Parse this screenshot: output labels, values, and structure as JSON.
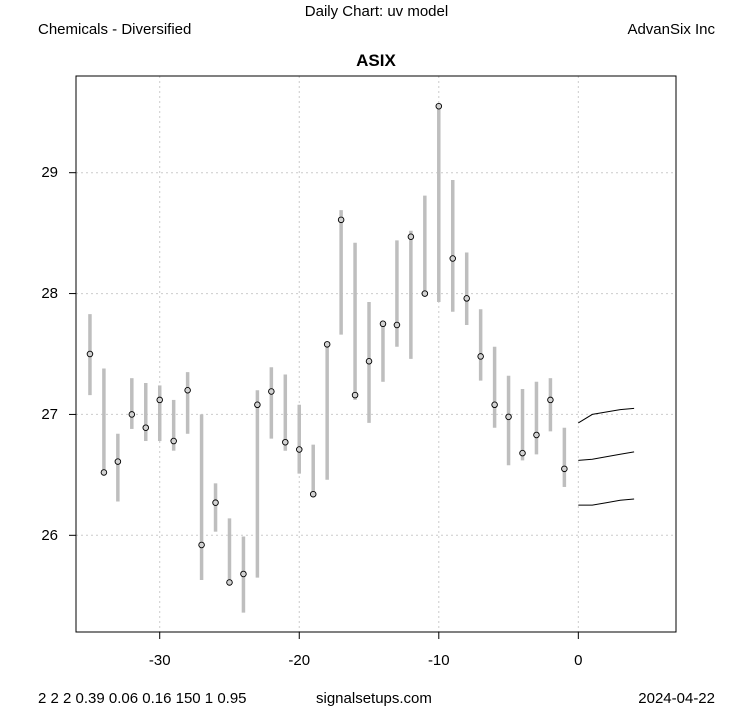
{
  "header": {
    "top_title": "Daily Chart: uv model",
    "left_label": "Chemicals - Diversified",
    "right_label": "AdvanSix Inc"
  },
  "footer": {
    "params": "2 2 2 0.39 0.06 0.16 150 1 0.95",
    "site": "signalsetups.com",
    "date": "2024-04-22"
  },
  "chart_data": {
    "type": "scatter",
    "title": "ASIX",
    "xlabel": "",
    "ylabel": "",
    "xlim": [
      -36,
      7
    ],
    "ylim": [
      25.2,
      29.8
    ],
    "x_ticks": [
      -30,
      -20,
      -10,
      0
    ],
    "y_ticks": [
      26,
      27,
      28,
      29
    ],
    "grid": true,
    "colors": {
      "range_bar": "#bebebe",
      "point_fill": "#d3d3d3",
      "point_stroke": "#000000",
      "forecast_line": "#000000",
      "grid": "#cccccc"
    },
    "points": [
      {
        "x": -35,
        "close": 27.5,
        "low": 27.16,
        "high": 27.83
      },
      {
        "x": -34,
        "close": 26.52,
        "low": 26.52,
        "high": 27.38
      },
      {
        "x": -33,
        "close": 26.61,
        "low": 26.28,
        "high": 26.84
      },
      {
        "x": -32,
        "close": 27.0,
        "low": 26.88,
        "high": 27.3
      },
      {
        "x": -31,
        "close": 26.89,
        "low": 26.78,
        "high": 27.26
      },
      {
        "x": -30,
        "close": 27.12,
        "low": 26.78,
        "high": 27.24
      },
      {
        "x": -29,
        "close": 26.78,
        "low": 26.7,
        "high": 27.12
      },
      {
        "x": -28,
        "close": 27.2,
        "low": 26.84,
        "high": 27.35
      },
      {
        "x": -27,
        "close": 25.92,
        "low": 25.63,
        "high": 27.0
      },
      {
        "x": -26,
        "close": 26.27,
        "low": 26.03,
        "high": 26.43
      },
      {
        "x": -25,
        "close": 25.61,
        "low": 25.61,
        "high": 26.14
      },
      {
        "x": -24,
        "close": 25.68,
        "low": 25.36,
        "high": 25.99
      },
      {
        "x": -23,
        "close": 27.08,
        "low": 25.65,
        "high": 27.2
      },
      {
        "x": -22,
        "close": 27.19,
        "low": 26.8,
        "high": 27.39
      },
      {
        "x": -21,
        "close": 26.77,
        "low": 26.7,
        "high": 27.33
      },
      {
        "x": -20,
        "close": 26.71,
        "low": 26.51,
        "high": 27.08
      },
      {
        "x": -19,
        "close": 26.34,
        "low": 26.34,
        "high": 26.75
      },
      {
        "x": -18,
        "close": 27.58,
        "low": 26.46,
        "high": 27.58
      },
      {
        "x": -17,
        "close": 28.61,
        "low": 27.66,
        "high": 28.69
      },
      {
        "x": -16,
        "close": 27.16,
        "low": 27.12,
        "high": 28.42
      },
      {
        "x": -15,
        "close": 27.44,
        "low": 26.93,
        "high": 27.93
      },
      {
        "x": -14,
        "close": 27.75,
        "low": 27.27,
        "high": 27.75
      },
      {
        "x": -13,
        "close": 27.74,
        "low": 27.56,
        "high": 28.44
      },
      {
        "x": -12,
        "close": 28.47,
        "low": 27.46,
        "high": 28.52
      },
      {
        "x": -11,
        "close": 28.0,
        "low": 28.0,
        "high": 28.81
      },
      {
        "x": -10,
        "close": 29.55,
        "low": 27.93,
        "high": 29.55
      },
      {
        "x": -9,
        "close": 28.29,
        "low": 27.85,
        "high": 28.94
      },
      {
        "x": -8,
        "close": 27.96,
        "low": 27.74,
        "high": 28.34
      },
      {
        "x": -7,
        "close": 27.48,
        "low": 27.28,
        "high": 27.87
      },
      {
        "x": -6,
        "close": 27.08,
        "low": 26.89,
        "high": 27.56
      },
      {
        "x": -5,
        "close": 26.98,
        "low": 26.58,
        "high": 27.32
      },
      {
        "x": -4,
        "close": 26.68,
        "low": 26.62,
        "high": 27.21
      },
      {
        "x": -3,
        "close": 26.83,
        "low": 26.67,
        "high": 27.27
      },
      {
        "x": -2,
        "close": 27.12,
        "low": 26.86,
        "high": 27.3
      },
      {
        "x": -1,
        "close": 26.55,
        "low": 26.4,
        "high": 26.89
      }
    ],
    "forecast": [
      {
        "name": "upper",
        "x": [
          0,
          1,
          2,
          3,
          4
        ],
        "y": [
          26.93,
          27.0,
          27.02,
          27.04,
          27.05
        ]
      },
      {
        "name": "middle",
        "x": [
          0,
          1,
          2,
          3,
          4
        ],
        "y": [
          26.62,
          26.63,
          26.65,
          26.67,
          26.69
        ]
      },
      {
        "name": "lower",
        "x": [
          0,
          1,
          2,
          3,
          4
        ],
        "y": [
          26.25,
          26.25,
          26.27,
          26.29,
          26.3
        ]
      }
    ]
  }
}
